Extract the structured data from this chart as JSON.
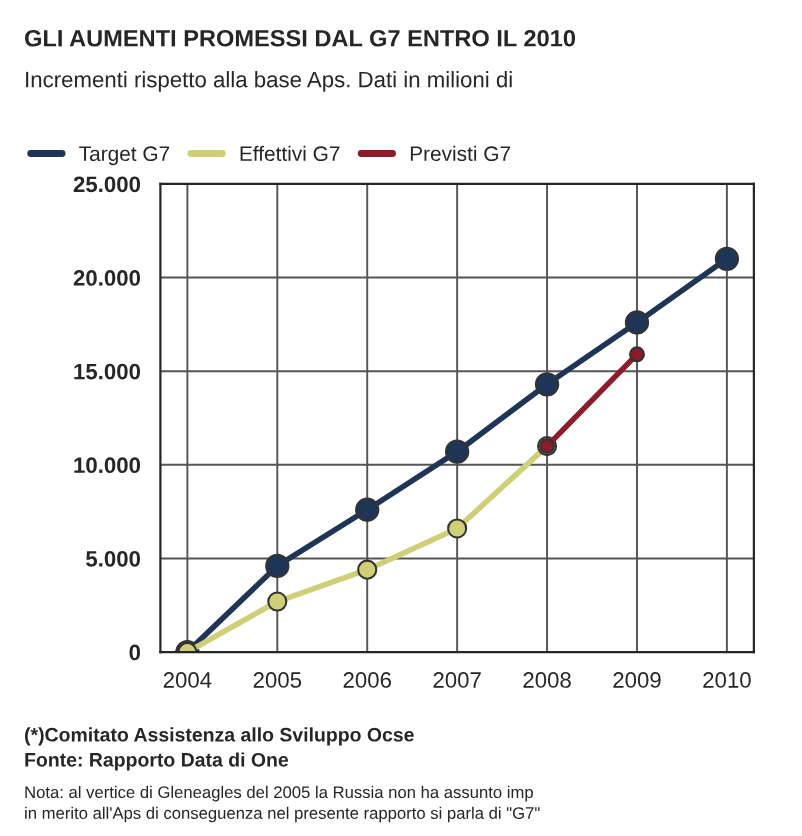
{
  "chart_data": {
    "type": "line",
    "title": "GLI AUMENTI PROMESSI DAL G7 ENTRO IL 2010",
    "subtitle": "Incrementi rispetto alla base Aps. Dati in milioni di",
    "categories": [
      "2004",
      "2005",
      "2006",
      "2007",
      "2008",
      "2009",
      "2010"
    ],
    "series": [
      {
        "name": "Target G7",
        "color": "#1f3558",
        "values": [
          0,
          4600,
          7600,
          10700,
          14300,
          17600,
          21000
        ]
      },
      {
        "name": "Effettivi G7",
        "color": "#cfcf78",
        "values": [
          0,
          2700,
          4400,
          6600,
          11000,
          null,
          null
        ]
      },
      {
        "name": "Previsti G7",
        "color": "#8a1c2c",
        "values": [
          null,
          null,
          null,
          null,
          11000,
          15900,
          null
        ]
      }
    ],
    "ylim": [
      0,
      25000
    ],
    "yticks": [
      0,
      {
        "value": 5000,
        "label": "5.000"
      },
      {
        "value": 10000,
        "label": "10.000"
      },
      {
        "value": 15000,
        "label": "15.000"
      },
      {
        "value": 20000,
        "label": "20.000"
      },
      {
        "value": 25000,
        "label": "25.000"
      }
    ],
    "grid": true,
    "legend": "top",
    "marker": "circle",
    "line_style": "solid",
    "annotations": [
      "(*)Comitato Assistenza allo Sviluppo Ocse",
      "Fonte: Rapporto Data di One",
      "Nota: al vertice di Gleneagles del 2005 la Russia non ha assunto imp",
      "in merito all'Aps di conseguenza nel presente rapporto si parla di \"G7\""
    ]
  }
}
